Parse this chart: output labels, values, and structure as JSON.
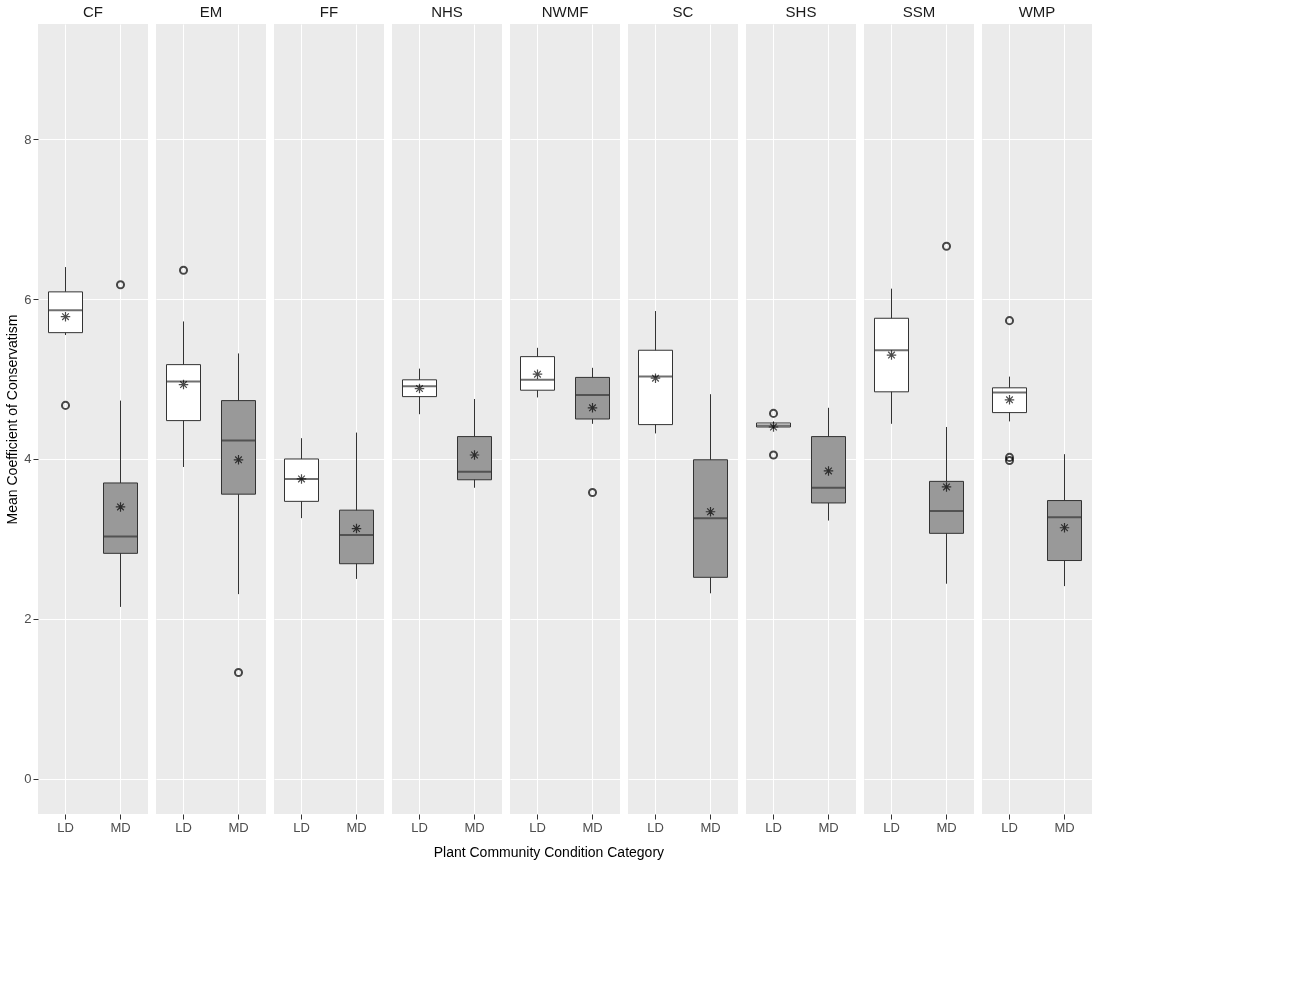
{
  "chart_data": [
    {
      "type": "box",
      "title": "CF",
      "ylabel": "Mean Coefficient of Conservatism",
      "categories": [
        "LD",
        "MD"
      ],
      "colors": [
        "#ffffff",
        "#999999"
      ],
      "ylim": [
        -0.44,
        9.44
      ],
      "yticks": [
        0,
        2,
        4,
        6,
        8
      ],
      "grid": true,
      "boxes": [
        {
          "low": 5.55,
          "q1": 5.58,
          "median": 5.86,
          "q3": 6.09,
          "high": 6.4,
          "mean": 5.78,
          "outliers": [
            4.67
          ]
        },
        {
          "low": 2.15,
          "q1": 2.82,
          "median": 3.03,
          "q3": 3.7,
          "high": 4.73,
          "mean": 3.4,
          "outliers": [
            6.18
          ]
        }
      ]
    },
    {
      "type": "box",
      "title": "EM",
      "categories": [
        "LD",
        "MD"
      ],
      "colors": [
        "#ffffff",
        "#999999"
      ],
      "ylim": [
        -0.44,
        9.44
      ],
      "yticks": [
        0,
        2,
        4,
        6,
        8
      ],
      "grid": true,
      "tick_labels": "x",
      "boxes": [
        {
          "low": 3.9,
          "q1": 4.48,
          "median": 4.97,
          "q3": 5.18,
          "high": 5.72,
          "mean": 4.93,
          "outliers": [
            6.36
          ]
        },
        {
          "low": 2.31,
          "q1": 3.56,
          "median": 4.23,
          "q3": 4.73,
          "high": 5.32,
          "mean": 3.99,
          "outliers": [
            1.33
          ]
        }
      ]
    },
    {
      "type": "box",
      "title": "FF",
      "categories": [
        "LD",
        "MD"
      ],
      "colors": [
        "#ffffff",
        "#999999"
      ],
      "ylim": [
        -0.44,
        9.44
      ],
      "yticks": [
        0,
        2,
        4,
        6,
        8
      ],
      "grid": true,
      "tick_labels": "x",
      "boxes": [
        {
          "low": 3.26,
          "q1": 3.47,
          "median": 3.75,
          "q3": 4.0,
          "high": 4.26,
          "mean": 3.75
        },
        {
          "low": 2.5,
          "q1": 2.69,
          "median": 3.05,
          "q3": 3.36,
          "high": 4.33,
          "mean": 3.13
        }
      ]
    },
    {
      "type": "box",
      "title": "NHS",
      "categories": [
        "LD",
        "MD"
      ],
      "colors": [
        "#ffffff",
        "#999999"
      ],
      "ylim": [
        -0.44,
        9.44
      ],
      "yticks": [
        0,
        2,
        4,
        6,
        8
      ],
      "grid": true,
      "tick_labels": "x",
      "boxes": [
        {
          "low": 4.56,
          "q1": 4.78,
          "median": 4.91,
          "q3": 4.99,
          "high": 5.13,
          "mean": 4.88
        },
        {
          "low": 3.64,
          "q1": 3.74,
          "median": 3.84,
          "q3": 4.28,
          "high": 4.75,
          "mean": 4.05
        }
      ]
    },
    {
      "type": "box",
      "title": "NWMF",
      "xlabel": "Plant Community Condition Category",
      "categories": [
        "LD",
        "MD"
      ],
      "colors": [
        "#ffffff",
        "#999999"
      ],
      "ylim": [
        -0.44,
        9.44
      ],
      "yticks": [
        0,
        2,
        4,
        6,
        8
      ],
      "grid": true,
      "tick_labels": "x",
      "boxes": [
        {
          "low": 4.77,
          "q1": 4.86,
          "median": 4.99,
          "q3": 5.28,
          "high": 5.39,
          "mean": 5.06
        },
        {
          "low": 4.44,
          "q1": 4.5,
          "median": 4.8,
          "q3": 5.02,
          "high": 5.14,
          "mean": 4.64,
          "outliers": [
            3.58
          ]
        }
      ]
    },
    {
      "type": "box",
      "title": "SC",
      "categories": [
        "LD",
        "MD"
      ],
      "colors": [
        "#ffffff",
        "#999999"
      ],
      "ylim": [
        -0.44,
        9.44
      ],
      "yticks": [
        0,
        2,
        4,
        6,
        8
      ],
      "grid": true,
      "tick_labels": "x",
      "boxes": [
        {
          "low": 4.32,
          "q1": 4.43,
          "median": 5.03,
          "q3": 5.36,
          "high": 5.85,
          "mean": 5.01
        },
        {
          "low": 2.32,
          "q1": 2.52,
          "median": 3.26,
          "q3": 3.99,
          "high": 4.81,
          "mean": 3.34
        }
      ]
    },
    {
      "type": "box",
      "title": "SHS",
      "categories": [
        "LD",
        "MD"
      ],
      "colors": [
        "#ffffff",
        "#999999"
      ],
      "ylim": [
        -0.44,
        9.44
      ],
      "yticks": [
        0,
        2,
        4,
        6,
        8
      ],
      "grid": true,
      "tick_labels": "x",
      "boxes": [
        {
          "low": 4.38,
          "q1": 4.4,
          "median": 4.42,
          "q3": 4.45,
          "high": 4.47,
          "mean": 4.4,
          "outliers": [
            4.57,
            4.05
          ]
        },
        {
          "low": 3.23,
          "q1": 3.45,
          "median": 3.64,
          "q3": 4.28,
          "high": 4.64,
          "mean": 3.85
        }
      ]
    },
    {
      "type": "box",
      "title": "SSM",
      "categories": [
        "LD",
        "MD"
      ],
      "colors": [
        "#ffffff",
        "#999999"
      ],
      "ylim": [
        -0.44,
        9.44
      ],
      "yticks": [
        0,
        2,
        4,
        6,
        8
      ],
      "grid": true,
      "tick_labels": "x",
      "boxes": [
        {
          "low": 4.44,
          "q1": 4.84,
          "median": 5.36,
          "q3": 5.76,
          "high": 6.13,
          "mean": 5.3
        },
        {
          "low": 2.44,
          "q1": 3.07,
          "median": 3.35,
          "q3": 3.72,
          "high": 4.4,
          "mean": 3.65,
          "outliers": [
            6.66
          ]
        }
      ]
    },
    {
      "type": "box",
      "title": "WMP",
      "categories": [
        "LD",
        "MD"
      ],
      "colors": [
        "#ffffff",
        "#999999"
      ],
      "ylim": [
        -0.44,
        9.44
      ],
      "yticks": [
        0,
        2,
        4,
        6,
        8
      ],
      "grid": true,
      "tick_labels": "x",
      "boxes": [
        {
          "low": 4.47,
          "q1": 4.58,
          "median": 4.83,
          "q3": 4.89,
          "high": 5.03,
          "mean": 4.74,
          "outliers": [
            5.73,
            4.02,
            3.98
          ]
        },
        {
          "low": 2.41,
          "q1": 2.73,
          "median": 3.27,
          "q3": 3.48,
          "high": 4.06,
          "mean": 3.14
        }
      ]
    }
  ]
}
